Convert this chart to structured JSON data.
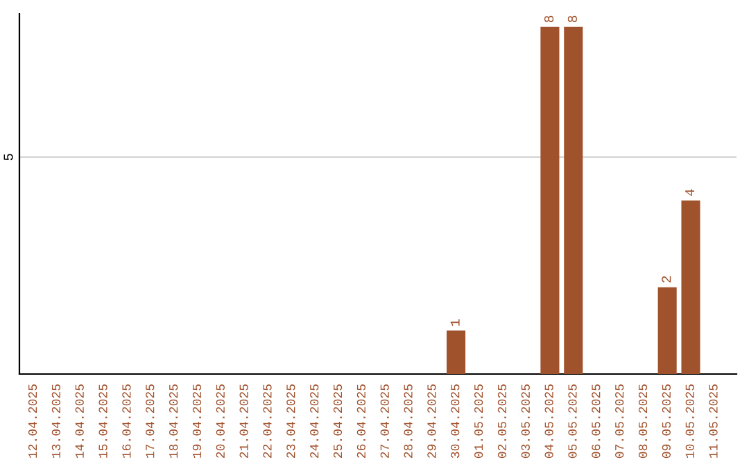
{
  "chart_data": {
    "type": "bar",
    "categories": [
      "12.04.2025",
      "13.04.2025",
      "14.04.2025",
      "15.04.2025",
      "16.04.2025",
      "17.04.2025",
      "18.04.2025",
      "19.04.2025",
      "20.04.2025",
      "21.04.2025",
      "22.04.2025",
      "23.04.2025",
      "24.04.2025",
      "25.04.2025",
      "26.04.2025",
      "27.04.2025",
      "28.04.2025",
      "29.04.2025",
      "30.04.2025",
      "01.05.2025",
      "02.05.2025",
      "03.05.2025",
      "04.05.2025",
      "05.05.2025",
      "06.05.2025",
      "07.05.2025",
      "08.05.2025",
      "09.05.2025",
      "10.05.2025",
      "11.05.2025"
    ],
    "values": [
      null,
      null,
      null,
      null,
      null,
      null,
      null,
      null,
      null,
      null,
      null,
      null,
      null,
      null,
      null,
      null,
      null,
      null,
      1,
      null,
      null,
      null,
      8,
      8,
      null,
      null,
      null,
      2,
      4,
      null
    ],
    "data_labels": true,
    "color": "#a0522d",
    "ylim": [
      0,
      8.3
    ],
    "yticks": [
      5
    ],
    "grid": "y",
    "legend": false
  }
}
